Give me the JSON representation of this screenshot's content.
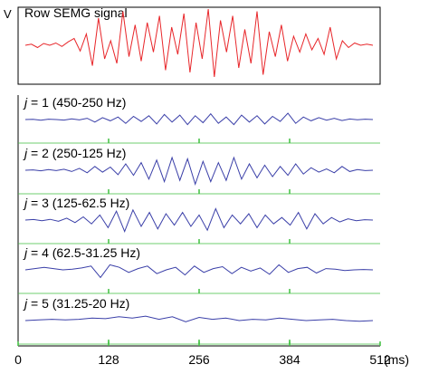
{
  "chart_data": [
    {
      "type": "line",
      "title": "Row SEMG signal",
      "ylabel": "V",
      "color": "#e8262a",
      "series": [
        {
          "values": [
            0.0,
            0.05,
            -0.1,
            0.08,
            0.0,
            0.1,
            -0.05,
            0.15,
            0.3,
            -0.25,
            0.5,
            -0.9,
            1.2,
            -0.6,
            0.2,
            -0.8,
            1.5,
            -0.5,
            0.9,
            -0.7,
            1.0,
            -0.3,
            1.3,
            -1.1,
            0.8,
            -0.4,
            1.4,
            -1.2,
            1.0,
            -0.6,
            1.6,
            -1.4,
            1.1,
            -0.3,
            1.3,
            -1.0,
            0.7,
            -0.8,
            1.5,
            -1.3,
            0.6,
            -0.5,
            0.9,
            -0.7,
            0.4,
            -0.3,
            0.5,
            -0.2,
            0.3,
            -0.4,
            0.8,
            -0.6,
            0.2,
            -0.1,
            0.1,
            0.0,
            0.05,
            0.0
          ]
        }
      ]
    },
    {
      "type": "line",
      "label_italic": "j",
      "label_text": " = 1 (450-250 Hz)",
      "color": "#3a3fa8",
      "series": [
        {
          "values": [
            0.0,
            0.02,
            -0.05,
            0.03,
            0.0,
            -0.04,
            0.06,
            -0.03,
            0.1,
            -0.2,
            0.15,
            -0.1,
            0.2,
            -0.3,
            0.25,
            -0.15,
            0.3,
            -0.35,
            0.4,
            -0.2,
            0.35,
            -0.4,
            0.3,
            -0.25,
            0.45,
            -0.3,
            0.2,
            -0.4,
            0.35,
            -0.2,
            0.3,
            -0.35,
            0.25,
            -0.15,
            0.5,
            -0.3,
            0.2,
            -0.1,
            0.15,
            -0.05,
            0.1,
            -0.08,
            0.04,
            -0.02,
            0.03,
            0.0
          ]
        }
      ]
    },
    {
      "type": "line",
      "label_italic": "j",
      "label_text": " = 2 (250-125 Hz)",
      "color": "#3a3fa8",
      "series": [
        {
          "values": [
            0.0,
            0.03,
            -0.04,
            0.05,
            -0.03,
            0.08,
            -0.1,
            0.15,
            -0.2,
            0.3,
            -0.15,
            0.25,
            -0.35,
            0.5,
            -0.4,
            0.6,
            -0.7,
            0.8,
            -0.9,
            1.0,
            -0.8,
            0.9,
            -1.1,
            0.7,
            -0.9,
            0.6,
            -0.8,
            1.0,
            -0.7,
            0.5,
            -0.6,
            0.4,
            -0.5,
            0.3,
            -0.4,
            0.5,
            -0.3,
            0.2,
            -0.15,
            0.1,
            -0.2,
            0.3,
            -0.1,
            0.05,
            -0.03,
            0.0
          ]
        }
      ]
    },
    {
      "type": "line",
      "label_italic": "j",
      "label_text": " = 3 (125-62.5 Hz)",
      "color": "#3a3fa8",
      "series": [
        {
          "values": [
            0.0,
            0.04,
            -0.05,
            0.06,
            -0.1,
            0.15,
            -0.2,
            0.25,
            -0.3,
            0.4,
            -0.6,
            0.7,
            -0.9,
            0.8,
            -0.5,
            0.6,
            -0.7,
            0.5,
            -0.4,
            0.6,
            -0.5,
            0.4,
            -0.8,
            0.9,
            -0.6,
            0.4,
            -0.3,
            0.5,
            -0.6,
            0.4,
            -0.3,
            0.2,
            -0.4,
            0.6,
            -0.7,
            0.5,
            -0.3,
            0.2,
            -0.15,
            0.1,
            -0.05,
            0.03,
            0.0
          ]
        }
      ]
    },
    {
      "type": "line",
      "label_italic": "j",
      "label_text": " = 4 (62.5-31.25 Hz)",
      "color": "#3a3fa8",
      "series": [
        {
          "values": [
            0.0,
            0.1,
            0.2,
            0.1,
            0.0,
            0.05,
            0.15,
            0.3,
            -0.6,
            0.4,
            0.2,
            -0.2,
            0.1,
            0.3,
            -0.3,
            0.0,
            0.2,
            -0.4,
            0.3,
            -0.2,
            0.1,
            0.25,
            -0.3,
            0.2,
            -0.1,
            0.15,
            -0.35,
            0.4,
            -0.2,
            0.1,
            0.2,
            -0.25,
            0.1,
            0.05,
            -0.05,
            0.0,
            0.03,
            0.0
          ]
        }
      ]
    },
    {
      "type": "line",
      "label_italic": "j",
      "label_text": " = 5 (31.25-20 Hz)",
      "color": "#3a3fa8",
      "series": [
        {
          "values": [
            0.0,
            0.05,
            0.1,
            0.05,
            0.1,
            0.2,
            0.15,
            0.3,
            0.2,
            0.35,
            0.1,
            0.3,
            -0.1,
            0.25,
            0.1,
            0.2,
            0.0,
            0.1,
            0.05,
            0.2,
            0.1,
            0.0,
            0.05,
            0.1,
            0.0,
            -0.05,
            0.0
          ]
        }
      ]
    }
  ],
  "x_axis": {
    "unit": "(ms)",
    "ticks": [
      0,
      128,
      256,
      384,
      512
    ],
    "range": [
      0,
      512
    ]
  },
  "grid_color": "#3fbf3f"
}
